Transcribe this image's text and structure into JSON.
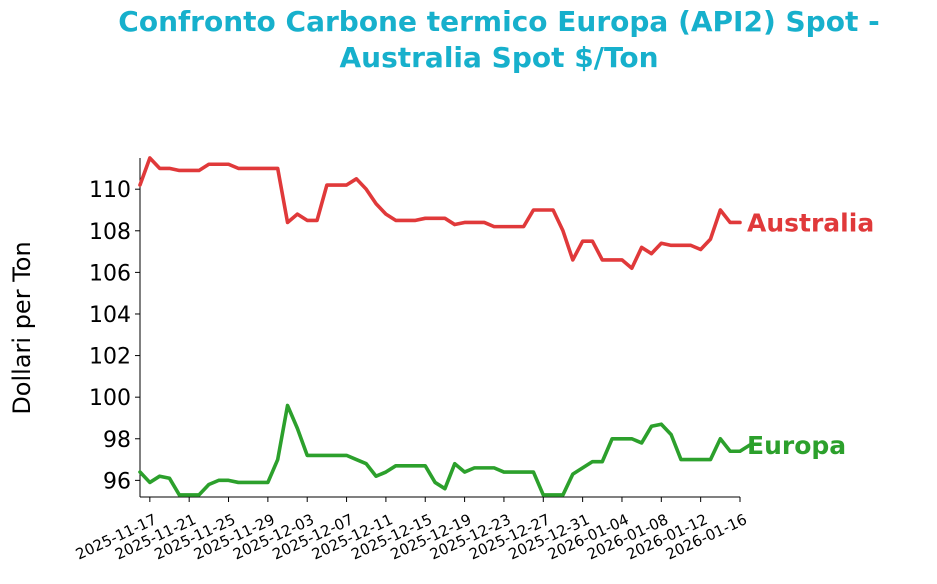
{
  "chart_data": {
    "type": "line",
    "title_line1": "Confronto Carbone termico Europa (API2) Spot -",
    "title_line2": "Australia Spot $/Ton",
    "title_color": "#17b0cc",
    "ylabel": "Dollari per Ton",
    "xlabel": "",
    "ylim": [
      95.2,
      111.5
    ],
    "x_date_range": [
      "2025-11-16",
      "2026-01-16"
    ],
    "y_ticks": [
      96,
      98,
      100,
      102,
      104,
      106,
      108,
      110
    ],
    "y_tick_labels": [
      "96",
      "98",
      "100",
      "102",
      "104",
      "106",
      "108",
      "110"
    ],
    "x_ticks": [
      "2025-11-17",
      "2025-11-21",
      "2025-11-25",
      "2025-11-29",
      "2025-12-03",
      "2025-12-07",
      "2025-12-11",
      "2025-12-15",
      "2025-12-19",
      "2025-12-23",
      "2025-12-27",
      "2025-12-31",
      "2026-01-04",
      "2026-01-08",
      "2026-01-12",
      "2026-01-16"
    ],
    "grid": false,
    "legend": "none",
    "series": [
      {
        "name": "Australia",
        "color": "#e0393a",
        "points": [
          [
            "2025-11-16",
            110.2
          ],
          [
            "2025-11-17",
            111.5
          ],
          [
            "2025-11-18",
            111.0
          ],
          [
            "2025-11-19",
            111.0
          ],
          [
            "2025-11-20",
            110.9
          ],
          [
            "2025-11-21",
            110.9
          ],
          [
            "2025-11-22",
            110.9
          ],
          [
            "2025-11-23",
            111.2
          ],
          [
            "2025-11-24",
            111.2
          ],
          [
            "2025-11-25",
            111.2
          ],
          [
            "2025-11-26",
            111.0
          ],
          [
            "2025-11-27",
            111.0
          ],
          [
            "2025-11-28",
            111.0
          ],
          [
            "2025-11-29",
            111.0
          ],
          [
            "2025-11-30",
            111.0
          ],
          [
            "2025-12-01",
            108.4
          ],
          [
            "2025-12-02",
            108.8
          ],
          [
            "2025-12-03",
            108.5
          ],
          [
            "2025-12-04",
            108.5
          ],
          [
            "2025-12-05",
            110.2
          ],
          [
            "2025-12-06",
            110.2
          ],
          [
            "2025-12-07",
            110.2
          ],
          [
            "2025-12-08",
            110.5
          ],
          [
            "2025-12-09",
            110.0
          ],
          [
            "2025-12-10",
            109.3
          ],
          [
            "2025-12-11",
            108.8
          ],
          [
            "2025-12-12",
            108.5
          ],
          [
            "2025-12-13",
            108.5
          ],
          [
            "2025-12-14",
            108.5
          ],
          [
            "2025-12-15",
            108.6
          ],
          [
            "2025-12-16",
            108.6
          ],
          [
            "2025-12-17",
            108.6
          ],
          [
            "2025-12-18",
            108.3
          ],
          [
            "2025-12-19",
            108.4
          ],
          [
            "2025-12-20",
            108.4
          ],
          [
            "2025-12-21",
            108.4
          ],
          [
            "2025-12-22",
            108.2
          ],
          [
            "2025-12-23",
            108.2
          ],
          [
            "2025-12-24",
            108.2
          ],
          [
            "2025-12-25",
            108.2
          ],
          [
            "2025-12-26",
            109.0
          ],
          [
            "2025-12-27",
            109.0
          ],
          [
            "2025-12-28",
            109.0
          ],
          [
            "2025-12-29",
            108.0
          ],
          [
            "2025-12-30",
            106.6
          ],
          [
            "2025-12-31",
            107.5
          ],
          [
            "2026-01-01",
            107.5
          ],
          [
            "2026-01-02",
            106.6
          ],
          [
            "2026-01-03",
            106.6
          ],
          [
            "2026-01-04",
            106.6
          ],
          [
            "2026-01-05",
            106.2
          ],
          [
            "2026-01-06",
            107.2
          ],
          [
            "2026-01-07",
            106.9
          ],
          [
            "2026-01-08",
            107.4
          ],
          [
            "2026-01-09",
            107.3
          ],
          [
            "2026-01-10",
            107.3
          ],
          [
            "2026-01-11",
            107.3
          ],
          [
            "2026-01-12",
            107.1
          ],
          [
            "2026-01-13",
            107.6
          ],
          [
            "2026-01-14",
            109.0
          ],
          [
            "2026-01-15",
            108.4
          ],
          [
            "2026-01-16",
            108.4
          ]
        ]
      },
      {
        "name": "Europa",
        "color": "#2ca02c",
        "points": [
          [
            "2025-11-16",
            96.4
          ],
          [
            "2025-11-17",
            95.9
          ],
          [
            "2025-11-18",
            96.2
          ],
          [
            "2025-11-19",
            96.1
          ],
          [
            "2025-11-20",
            95.3
          ],
          [
            "2025-11-21",
            95.3
          ],
          [
            "2025-11-22",
            95.3
          ],
          [
            "2025-11-23",
            95.8
          ],
          [
            "2025-11-24",
            96.0
          ],
          [
            "2025-11-25",
            96.0
          ],
          [
            "2025-11-26",
            95.9
          ],
          [
            "2025-11-27",
            95.9
          ],
          [
            "2025-11-28",
            95.9
          ],
          [
            "2025-11-29",
            95.9
          ],
          [
            "2025-11-30",
            97.0
          ],
          [
            "2025-12-01",
            99.6
          ],
          [
            "2025-12-02",
            98.5
          ],
          [
            "2025-12-03",
            97.2
          ],
          [
            "2025-12-04",
            97.2
          ],
          [
            "2025-12-05",
            97.2
          ],
          [
            "2025-12-06",
            97.2
          ],
          [
            "2025-12-07",
            97.2
          ],
          [
            "2025-12-08",
            97.0
          ],
          [
            "2025-12-09",
            96.8
          ],
          [
            "2025-12-10",
            96.2
          ],
          [
            "2025-12-11",
            96.4
          ],
          [
            "2025-12-12",
            96.7
          ],
          [
            "2025-12-13",
            96.7
          ],
          [
            "2025-12-14",
            96.7
          ],
          [
            "2025-12-15",
            96.7
          ],
          [
            "2025-12-16",
            95.9
          ],
          [
            "2025-12-17",
            95.6
          ],
          [
            "2025-12-18",
            96.8
          ],
          [
            "2025-12-19",
            96.4
          ],
          [
            "2025-12-20",
            96.6
          ],
          [
            "2025-12-21",
            96.6
          ],
          [
            "2025-12-22",
            96.6
          ],
          [
            "2025-12-23",
            96.4
          ],
          [
            "2025-12-24",
            96.4
          ],
          [
            "2025-12-25",
            96.4
          ],
          [
            "2025-12-26",
            96.4
          ],
          [
            "2025-12-27",
            95.3
          ],
          [
            "2025-12-28",
            95.3
          ],
          [
            "2025-12-29",
            95.3
          ],
          [
            "2025-12-30",
            96.3
          ],
          [
            "2025-12-31",
            96.6
          ],
          [
            "2026-01-01",
            96.9
          ],
          [
            "2026-01-02",
            96.9
          ],
          [
            "2026-01-03",
            98.0
          ],
          [
            "2026-01-04",
            98.0
          ],
          [
            "2026-01-05",
            98.0
          ],
          [
            "2026-01-06",
            97.8
          ],
          [
            "2026-01-07",
            98.6
          ],
          [
            "2026-01-08",
            98.7
          ],
          [
            "2026-01-09",
            98.2
          ],
          [
            "2026-01-10",
            97.0
          ],
          [
            "2026-01-11",
            97.0
          ],
          [
            "2026-01-12",
            97.0
          ],
          [
            "2026-01-13",
            97.0
          ],
          [
            "2026-01-14",
            98.0
          ],
          [
            "2026-01-15",
            97.4
          ],
          [
            "2026-01-16",
            97.4
          ],
          [
            "2026-01-17",
            97.7
          ]
        ]
      }
    ]
  }
}
